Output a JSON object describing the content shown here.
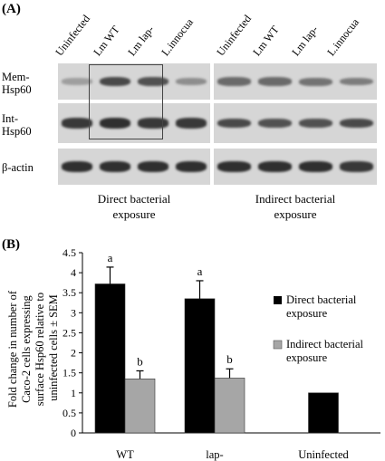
{
  "panel_a": {
    "label": "(A)",
    "lanes": [
      "Uninfected",
      "Lm WT",
      "Lm lap-",
      "L.innocua"
    ],
    "rows": [
      {
        "line1": "Mem-",
        "line2": "Hsp60",
        "intensity_direct": [
          0.25,
          0.75,
          0.7,
          0.35
        ],
        "intensity_indirect": [
          0.55,
          0.55,
          0.5,
          0.45
        ]
      },
      {
        "line1": "Int-",
        "line2": "Hsp60",
        "intensity_direct": [
          0.85,
          0.9,
          0.85,
          0.85
        ],
        "intensity_indirect": [
          0.75,
          0.7,
          0.7,
          0.75
        ]
      },
      {
        "line1": "β-actin",
        "line2": "",
        "intensity_direct": [
          0.9,
          0.9,
          0.9,
          0.9
        ],
        "intensity_indirect": [
          0.9,
          0.9,
          0.9,
          0.85
        ]
      }
    ],
    "caption_direct_1": "Direct bacterial",
    "caption_direct_2": "exposure",
    "caption_indirect_1": "Indirect bacterial",
    "caption_indirect_2": "exposure"
  },
  "panel_b": {
    "label": "(B)"
  },
  "chart_data": {
    "type": "bar",
    "categories": [
      "WT",
      "lap-",
      "Uninfected"
    ],
    "series": [
      {
        "name": "Direct bacterial exposure",
        "values": [
          3.72,
          3.35,
          1.0
        ],
        "errors": [
          0.42,
          0.45,
          0
        ],
        "letters": [
          "a",
          "a",
          ""
        ],
        "color": "#000000"
      },
      {
        "name": "Indirect bacterial exposure",
        "values": [
          1.35,
          1.37,
          null
        ],
        "errors": [
          0.2,
          0.23,
          0
        ],
        "letters": [
          "b",
          "b",
          ""
        ],
        "color": "#a6a6a6"
      }
    ],
    "ylabel_lines": [
      "Fold change in number of",
      "Caco-2 cells expressing",
      "surface Hsp60 relative to",
      "uninfected cells ± SEM"
    ],
    "ylim": [
      0,
      4.5
    ],
    "yticks": [
      "0",
      "0.5",
      "1",
      "1.5",
      "2",
      "2.5",
      "3",
      "3.5",
      "4",
      "4.5"
    ],
    "legend_1_line1": "Direct bacterial",
    "legend_1_line2": "exposure",
    "legend_2_line1": "Indirect bacterial",
    "legend_2_line2": "exposure",
    "legend_position": "right"
  }
}
